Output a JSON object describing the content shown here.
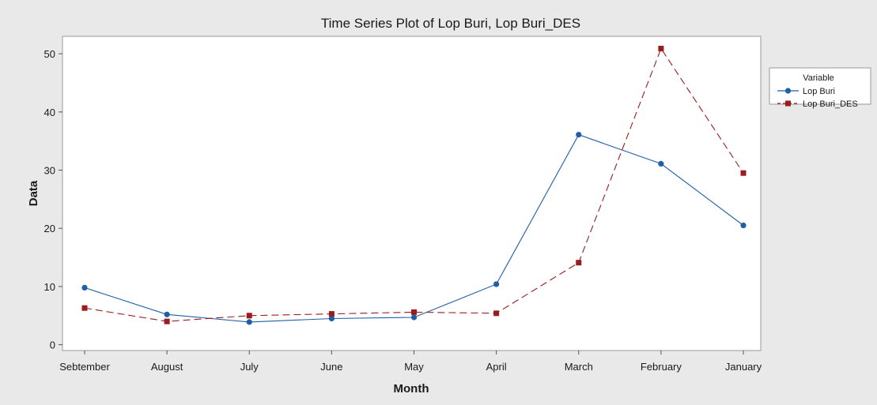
{
  "chart_data": {
    "type": "line",
    "title": "Time Series Plot of Lop Buri, Lop Buri_DES",
    "xlabel": "Month",
    "ylabel": "Data",
    "categories": [
      "Sebtember",
      "August",
      "July",
      "June",
      "May",
      "April",
      "March",
      "February",
      "January"
    ],
    "ylim": [
      -1,
      53
    ],
    "yticks": [
      0,
      10,
      20,
      30,
      40,
      50
    ],
    "grid": false,
    "legend": {
      "title": "Variable",
      "placement": "right"
    },
    "series": [
      {
        "name": "Lop Buri",
        "color": "#1f5fa8",
        "marker": "circle",
        "line_style": "solid",
        "values": [
          9.8,
          5.2,
          3.9,
          4.5,
          4.7,
          10.4,
          36.1,
          31.1,
          20.5
        ]
      },
      {
        "name": "Lop Buri_DES",
        "color": "#9b1c1c",
        "marker": "square",
        "line_style": "dashed",
        "values": [
          6.3,
          4.0,
          5.0,
          5.3,
          5.6,
          5.4,
          14.1,
          50.9,
          29.5
        ]
      }
    ]
  },
  "colors": {
    "background": "#e9e9e9",
    "plot_background": "#ffffff"
  }
}
